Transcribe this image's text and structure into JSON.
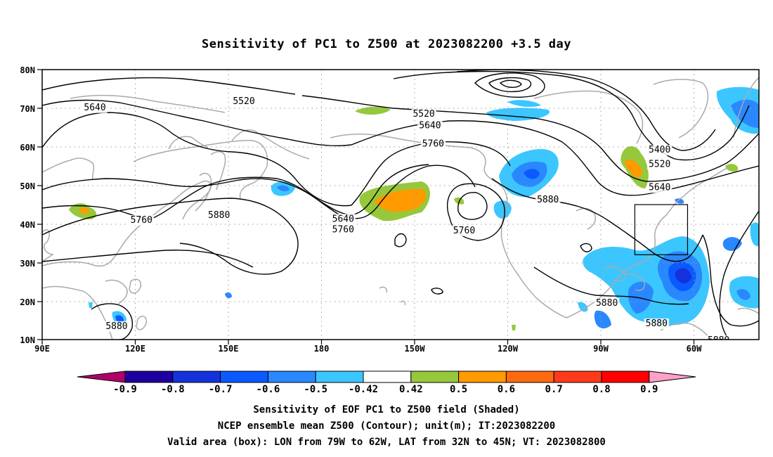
{
  "title": "Sensitivity of PC1 to Z500 at 2023082200 +3.5 day",
  "lon_ticks": [
    "90E",
    "120E",
    "150E",
    "180",
    "150W",
    "120W",
    "90W",
    "60W"
  ],
  "lat_ticks": [
    "80N",
    "70N",
    "60N",
    "50N",
    "40N",
    "30N",
    "20N",
    "10N"
  ],
  "contour_labels": [
    {
      "text": "5520",
      "lon": 155,
      "lat": 71.8
    },
    {
      "text": "5640",
      "lon": 107,
      "lat": 70.2
    },
    {
      "text": "5520",
      "lon": 213,
      "lat": 68.5
    },
    {
      "text": "5640",
      "lon": 215,
      "lat": 65.5
    },
    {
      "text": "5760",
      "lon": 216,
      "lat": 60.8
    },
    {
      "text": "5400",
      "lon": 289,
      "lat": 59.2
    },
    {
      "text": "5520",
      "lon": 289,
      "lat": 55.5
    },
    {
      "text": "5640",
      "lon": 289,
      "lat": 49.5
    },
    {
      "text": "5880",
      "lon": 253,
      "lat": 46.3
    },
    {
      "text": "5880",
      "lon": 147,
      "lat": 42.3
    },
    {
      "text": "5760",
      "lon": 122,
      "lat": 41
    },
    {
      "text": "5640",
      "lon": 187,
      "lat": 41.3
    },
    {
      "text": "5760",
      "lon": 187,
      "lat": 38.5
    },
    {
      "text": "5760",
      "lon": 226,
      "lat": 38.3
    },
    {
      "text": "5880",
      "lon": 272,
      "lat": 19.5
    },
    {
      "text": "5880",
      "lon": 288,
      "lat": 14.2
    },
    {
      "text": "5880",
      "lon": 114,
      "lat": 13.5
    },
    {
      "text": "5880",
      "lon": 308,
      "lat": 9.8
    }
  ],
  "colorbar": {
    "ticks": [
      "-0.9",
      "-0.8",
      "-0.7",
      "-0.6",
      "-0.5",
      "-0.42",
      "0.42",
      "0.5",
      "0.6",
      "0.7",
      "0.8",
      "0.9"
    ],
    "colors": [
      "#b0006a",
      "#1e00a0",
      "#1432dc",
      "#0a5aff",
      "#2a88ff",
      "#3cc6ff",
      "#ffffff",
      "#96c83c",
      "#ff9a00",
      "#ff6a10",
      "#ff3a1a",
      "#ff0000",
      "#ffa0c8"
    ]
  },
  "valid_box": {
    "lon_min": 281,
    "lon_max": 298,
    "lat_min": 32,
    "lat_max": 45
  },
  "captions": [
    "Sensitivity of EOF PC1 to Z500 field (Shaded)",
    "NCEP ensemble mean Z500 (Contour); unit(m); IT:2023082200",
    "Valid area (box): LON from 79W to 62W, LAT from 32N to 45N; VT: 2023082800"
  ],
  "colors": {
    "coast": "#aaaaaa",
    "grid": "#999999",
    "contour": "#000000"
  }
}
